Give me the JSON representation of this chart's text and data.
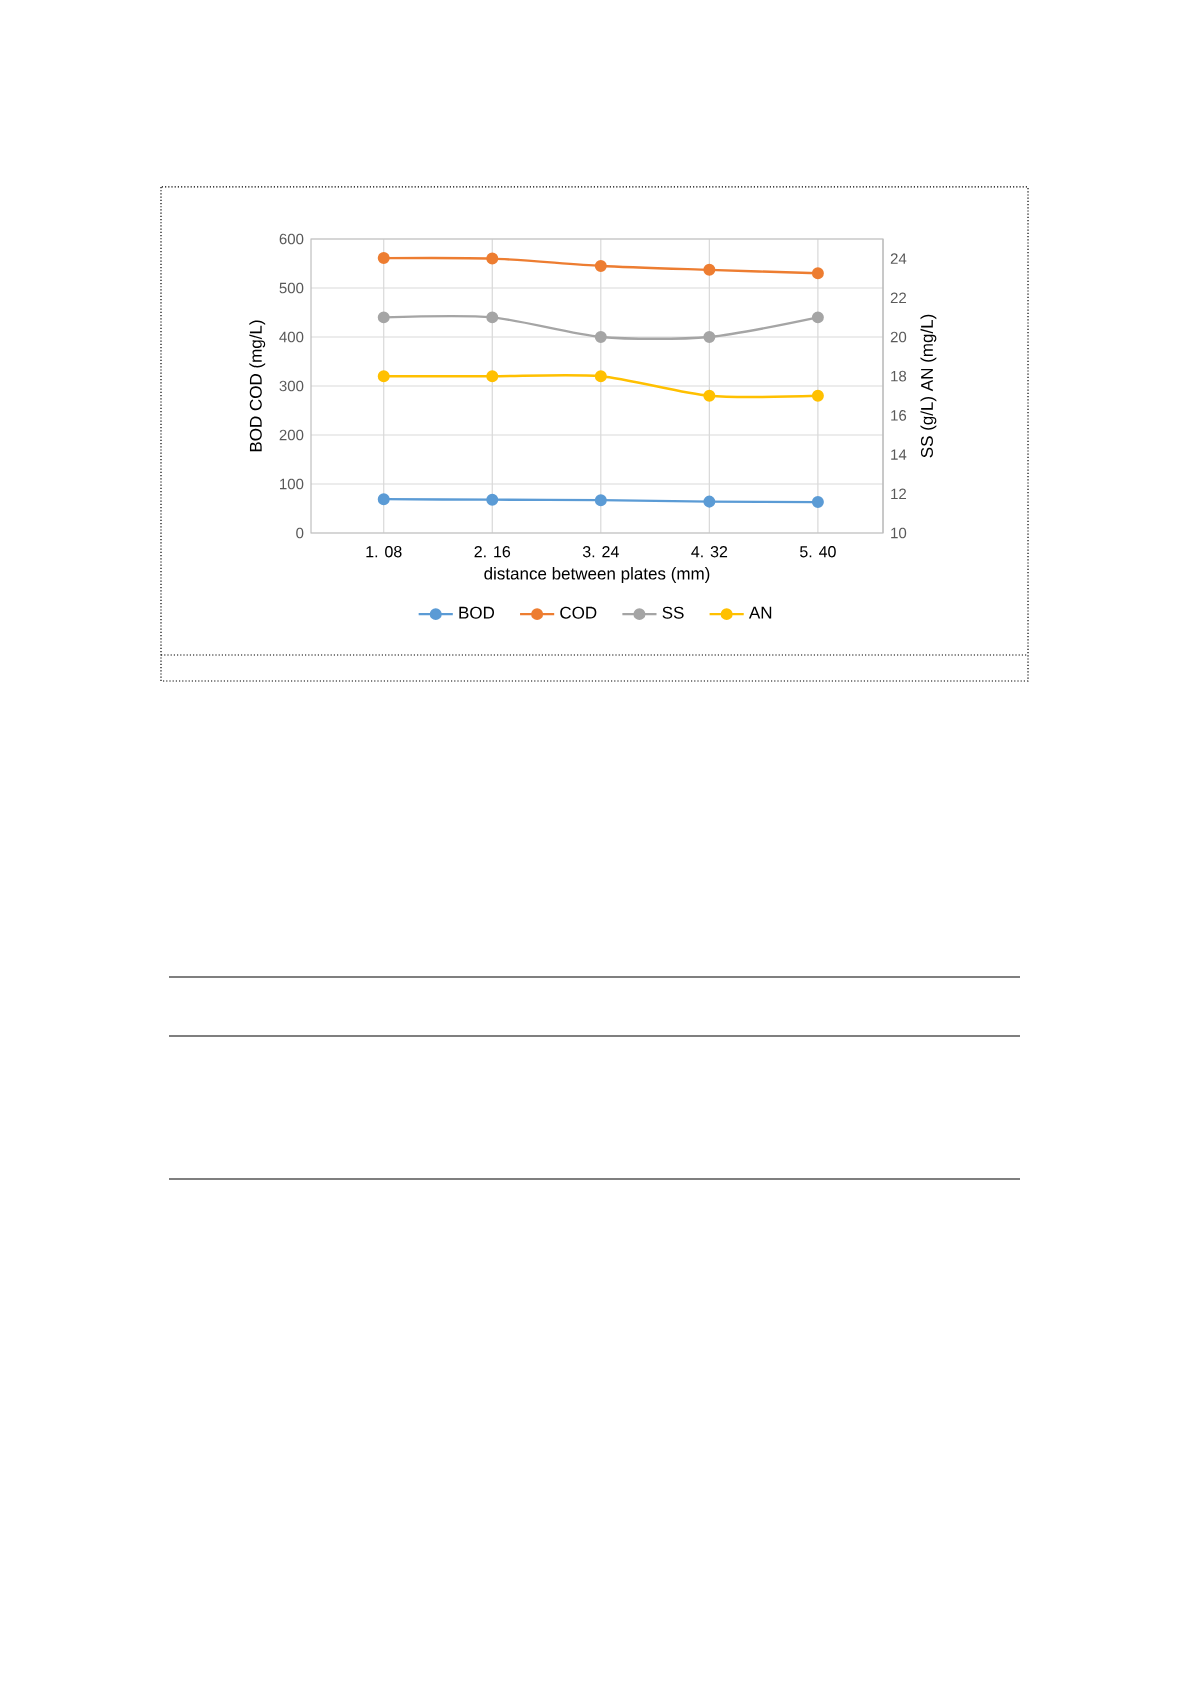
{
  "chart_data": {
    "type": "line",
    "xlabel": "distance between plates (mm)",
    "ylabel": "BOD COD (mg/L)",
    "y2label": "SS (g/L) AN (mg/L)",
    "categories": [
      "1. 08",
      "2. 16",
      "3. 24",
      "4. 32",
      "5. 40"
    ],
    "series": [
      {
        "name": "BOD",
        "color": "#5b9bd5",
        "values": [
          69,
          68,
          67,
          64,
          63
        ]
      },
      {
        "name": "COD",
        "color": "#ed7d31",
        "values": [
          561,
          560,
          545,
          537,
          530
        ]
      },
      {
        "name": "SS",
        "color": "#a5a5a5",
        "values": [
          21,
          21,
          20,
          20,
          21
        ],
        "axis": "y2"
      },
      {
        "name": "AN",
        "color": "#ffc000",
        "values": [
          18,
          18,
          18,
          17,
          17
        ],
        "axis": "y2"
      }
    ],
    "ylim": [
      0,
      600
    ],
    "yticks": [
      0,
      100,
      200,
      300,
      400,
      500,
      600
    ],
    "y2lim": [
      10,
      25
    ],
    "y2ticks": [
      10,
      12,
      14,
      16,
      18,
      20,
      22,
      24
    ],
    "grid": true,
    "legend": "bottom",
    "marker": "circle",
    "line_style": "solid"
  }
}
